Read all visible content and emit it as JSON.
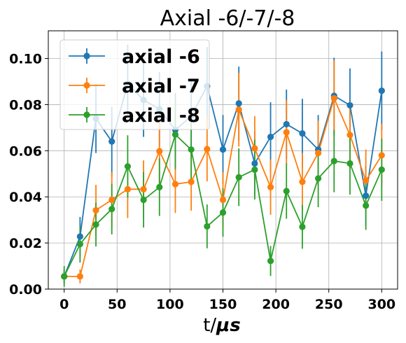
{
  "chart_data": {
    "type": "line",
    "title": "Axial -6/-7/-8",
    "xlabel_prefix": "t/",
    "xlabel_unit": "μs",
    "ylabel": "",
    "xlim": [
      -15,
      315
    ],
    "ylim": [
      0.0,
      0.112
    ],
    "xticks": [
      0,
      50,
      100,
      150,
      200,
      250,
      300
    ],
    "yticks": [
      0.0,
      0.02,
      0.04,
      0.06,
      0.08,
      0.1
    ],
    "ytick_labels": [
      "0.00",
      "0.02",
      "0.04",
      "0.06",
      "0.08",
      "0.10"
    ],
    "grid": true,
    "legend_position": "top-left",
    "x": [
      0,
      15,
      30,
      45,
      60,
      75,
      90,
      105,
      120,
      135,
      150,
      165,
      180,
      195,
      210,
      225,
      240,
      255,
      270,
      285,
      300
    ],
    "series": [
      {
        "name": "axial -6",
        "color": "#1f77b4",
        "values": [
          0.0055,
          0.0228,
          0.074,
          0.064,
          0.089,
          0.082,
          0.078,
          0.069,
          0.075,
          0.088,
          0.0605,
          0.0805,
          0.0545,
          0.066,
          0.0715,
          0.0675,
          0.0605,
          0.0838,
          0.0797,
          0.0405,
          0.086
        ],
        "errors": [
          0.003,
          0.0085,
          0.015,
          0.015,
          0.017,
          0.016,
          0.016,
          0.016,
          0.016,
          0.017,
          0.015,
          0.016,
          0.014,
          0.015,
          0.015,
          0.015,
          0.015,
          0.0165,
          0.016,
          0.013,
          0.017
        ]
      },
      {
        "name": "axial -7",
        "color": "#ff7f0e",
        "values": [
          0.0055,
          0.0055,
          0.0342,
          0.0387,
          0.0433,
          0.0433,
          0.0598,
          0.0455,
          0.0465,
          0.0607,
          0.0387,
          0.0778,
          0.061,
          0.0442,
          0.068,
          0.0465,
          0.059,
          0.0827,
          0.0668,
          0.047,
          0.058
        ],
        "errors": [
          0.003,
          0.003,
          0.011,
          0.012,
          0.0125,
          0.0125,
          0.014,
          0.0125,
          0.0125,
          0.014,
          0.012,
          0.016,
          0.014,
          0.012,
          0.014,
          0.0125,
          0.014,
          0.0165,
          0.0145,
          0.0135,
          0.0137
        ]
      },
      {
        "name": "axial -8",
        "color": "#2ca02c",
        "values": [
          0.0055,
          0.0195,
          0.028,
          0.0347,
          0.0532,
          0.0387,
          0.0442,
          0.067,
          0.0605,
          0.0272,
          0.0332,
          0.0485,
          0.0518,
          0.0122,
          0.0425,
          0.027,
          0.048,
          0.0555,
          0.0545,
          0.0362,
          0.0518
        ],
        "errors": [
          0.0045,
          0.008,
          0.0095,
          0.011,
          0.0135,
          0.012,
          0.0125,
          0.015,
          0.0145,
          0.0095,
          0.0105,
          0.0125,
          0.013,
          0.0065,
          0.012,
          0.0095,
          0.0125,
          0.0135,
          0.0135,
          0.0105,
          0.0135
        ]
      }
    ]
  }
}
